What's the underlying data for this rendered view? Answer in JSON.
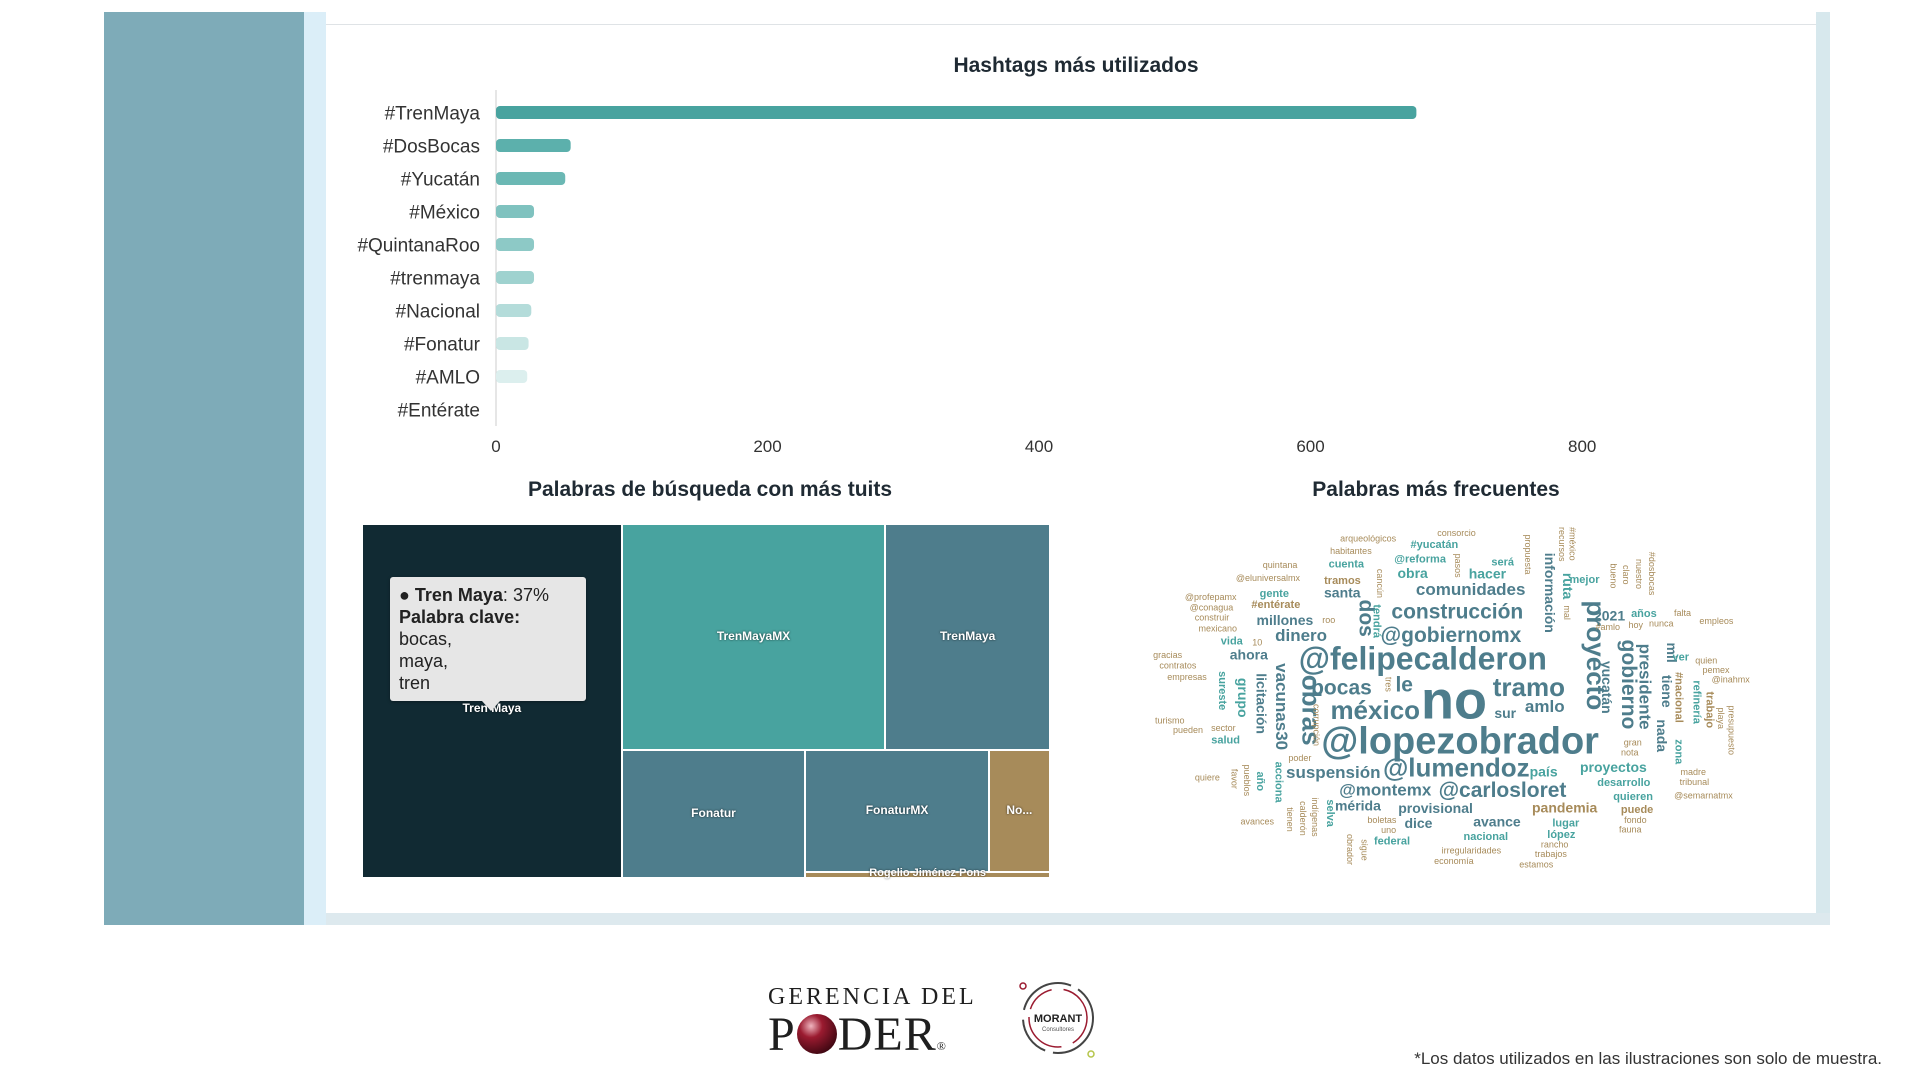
{
  "bar_chart": {
    "title": "Hashtags más utilizados"
  },
  "treemap": {
    "title": "Palabras de búsqueda con más tuits",
    "tooltip": {
      "name": "Tren Maya",
      "value": "37%",
      "keyword_label": "Palabra clave:",
      "keywords": "bocas,\nmaya,\ntren"
    }
  },
  "wordcloud": {
    "title": "Palabras más frecuentes"
  },
  "footer": {
    "logo_top": "GERENCIA DEL",
    "logo_bottom_left": "P",
    "logo_bottom_right": "DER",
    "logo_reg": "®",
    "morant_name": "MORANT",
    "morant_sub": "Consultores",
    "note": "*Los datos utilizados en las ilustraciones son solo de muestra."
  },
  "chart_data": [
    {
      "type": "bar",
      "orientation": "horizontal",
      "title": "Hashtags más utilizados",
      "categories": [
        "#TrenMaya",
        "#DosBocas",
        "#Yucatán",
        "#México",
        "#QuintanaRoo",
        "#trenmaya",
        "#Nacional",
        "#Fonatur",
        "#AMLO",
        "#Entérate"
      ],
      "values": [
        678,
        55,
        51,
        28,
        28,
        28,
        26,
        24,
        23,
        0
      ],
      "colors": [
        "#48a39f",
        "#5cb0ac",
        "#6bb8b4",
        "#7fc2bf",
        "#8dc9c6",
        "#9fd2cf",
        "#b4dcda",
        "#c9e6e4",
        "#dcefee",
        "#eef7f6"
      ],
      "xticks": [
        0,
        200,
        400,
        600,
        800
      ],
      "xlim": [
        0,
        800
      ],
      "grid": false
    },
    {
      "type": "treemap",
      "title": "Palabras de búsqueda con más tuits",
      "items": [
        {
          "name": "Tren Maya",
          "value": 37,
          "color": "#112a33"
        },
        {
          "name": "TrenMayaMX",
          "value": 24,
          "color": "#48a39f"
        },
        {
          "name": "TrenMaya",
          "value": 15,
          "color": "#4e7d8c"
        },
        {
          "name": "Fonatur",
          "value": 9,
          "color": "#4e7d8c"
        },
        {
          "name": "FonaturMX",
          "value": 9,
          "color": "#4e7d8c"
        },
        {
          "name": "No...",
          "value": 3,
          "color": "#a78b5a"
        },
        {
          "name": "Rogelio Jiménez Pons",
          "value": 1,
          "color": "#a78b5a"
        }
      ]
    },
    {
      "type": "wordcloud",
      "title": "Palabras más frecuentes",
      "colors": {
        "primary": "#4e7d8c",
        "teal": "#48a39f",
        "secondary": "#a78b5a"
      },
      "words": [
        {
          "t": "no",
          "w": 10,
          "c": "primary"
        },
        {
          "t": "@lopezobrador",
          "w": 8,
          "c": "primary"
        },
        {
          "t": "@felipecalderon",
          "w": 7,
          "c": "primary"
        },
        {
          "t": "tramo",
          "w": 6,
          "c": "primary"
        },
        {
          "t": "proyecto",
          "w": 6,
          "c": "primary"
        },
        {
          "t": "méxico",
          "w": 6,
          "c": "primary"
        },
        {
          "t": "@lumendoz",
          "w": 6,
          "c": "primary"
        },
        {
          "t": "obras",
          "w": 6,
          "c": "primary"
        },
        {
          "t": "@gobiernomx",
          "w": 5,
          "c": "primary"
        },
        {
          "t": "construcción",
          "w": 5,
          "c": "primary"
        },
        {
          "t": "suspensión",
          "w": 4,
          "c": "primary"
        },
        {
          "t": "gobierno",
          "w": 5,
          "c": "primary"
        },
        {
          "t": "bocas",
          "w": 5,
          "c": "primary"
        },
        {
          "t": "@carlosloret",
          "w": 5,
          "c": "primary"
        },
        {
          "t": "dos",
          "w": 5,
          "c": "primary"
        },
        {
          "t": "le",
          "w": 5,
          "c": "primary"
        },
        {
          "t": "presidente",
          "w": 4,
          "c": "primary"
        },
        {
          "t": "@montemx",
          "w": 4,
          "c": "primary"
        },
        {
          "t": "dinero",
          "w": 4,
          "c": "primary"
        },
        {
          "t": "vacunas30",
          "w": 4,
          "c": "primary"
        },
        {
          "t": "comunidades",
          "w": 4,
          "c": "primary"
        },
        {
          "t": "amlo",
          "w": 4,
          "c": "primary"
        },
        {
          "t": "información",
          "w": 3,
          "c": "primary"
        },
        {
          "t": "provisional",
          "w": 3,
          "c": "primary"
        },
        {
          "t": "proyectos",
          "w": 3,
          "c": "teal"
        },
        {
          "t": "licitación",
          "w": 3,
          "c": "primary"
        },
        {
          "t": "sur",
          "w": 3,
          "c": "primary"
        },
        {
          "t": "millones",
          "w": 3,
          "c": "primary"
        },
        {
          "t": "tiene",
          "w": 3,
          "c": "primary"
        },
        {
          "t": "mérida",
          "w": 3,
          "c": "primary"
        },
        {
          "t": "santa",
          "w": 3,
          "c": "primary"
        },
        {
          "t": "yucatán",
          "w": 3,
          "c": "primary"
        },
        {
          "t": "avance",
          "w": 3,
          "c": "primary"
        },
        {
          "t": "2021",
          "w": 3,
          "c": "primary"
        },
        {
          "t": "nada",
          "w": 3,
          "c": "primary"
        },
        {
          "t": "país",
          "w": 3,
          "c": "teal"
        },
        {
          "t": "obra",
          "w": 3,
          "c": "teal"
        },
        {
          "t": "ruta",
          "w": 3,
          "c": "teal"
        },
        {
          "t": "hacer",
          "w": 3,
          "c": "teal"
        },
        {
          "t": "pandemia",
          "w": 3,
          "c": "secondary"
        },
        {
          "t": "grupo",
          "w": 3,
          "c": "teal"
        },
        {
          "t": "dice",
          "w": 3,
          "c": "primary"
        },
        {
          "t": "ahora",
          "w": 3,
          "c": "primary"
        },
        {
          "t": "mil",
          "w": 3,
          "c": "primary"
        },
        {
          "t": "desarrollo",
          "w": 2,
          "c": "teal"
        },
        {
          "t": "tramos",
          "w": 2,
          "c": "secondary"
        },
        {
          "t": "#nacional",
          "w": 2,
          "c": "secondary"
        },
        {
          "t": "#entérate",
          "w": 2,
          "c": "secondary"
        },
        {
          "t": "@reforma",
          "w": 2,
          "c": "teal"
        },
        {
          "t": "acciona",
          "w": 2,
          "c": "teal"
        },
        {
          "t": "será",
          "w": 2,
          "c": "teal"
        },
        {
          "t": "lugar",
          "w": 2,
          "c": "teal"
        },
        {
          "t": "refinería",
          "w": 2,
          "c": "teal"
        },
        {
          "t": "nacional",
          "w": 2,
          "c": "teal"
        },
        {
          "t": "salud",
          "w": 2,
          "c": "teal"
        },
        {
          "t": "sureste",
          "w": 2,
          "c": "teal"
        },
        {
          "t": "quieren",
          "w": 2,
          "c": "teal"
        },
        {
          "t": "mejor",
          "w": 2,
          "c": "teal"
        },
        {
          "t": "tendrá",
          "w": 2,
          "c": "teal"
        },
        {
          "t": "años",
          "w": 2,
          "c": "teal"
        },
        {
          "t": "ver",
          "w": 2,
          "c": "teal"
        },
        {
          "t": "zona",
          "w": 2,
          "c": "teal"
        },
        {
          "t": "vida",
          "w": 2,
          "c": "teal"
        },
        {
          "t": "federal",
          "w": 2,
          "c": "teal"
        },
        {
          "t": "selva",
          "w": 2,
          "c": "teal"
        },
        {
          "t": "gente",
          "w": 2,
          "c": "teal"
        },
        {
          "t": "cuenta",
          "w": 2,
          "c": "teal"
        },
        {
          "t": "año",
          "w": 2,
          "c": "teal"
        },
        {
          "t": "lópez",
          "w": 2,
          "c": "teal"
        },
        {
          "t": "#yucatán",
          "w": 2,
          "c": "teal"
        },
        {
          "t": "trabajo",
          "w": 2,
          "c": "secondary"
        },
        {
          "t": "puede",
          "w": 2,
          "c": "secondary"
        },
        {
          "t": "quien",
          "w": 1,
          "c": "secondary"
        },
        {
          "t": "indígenas",
          "w": 1,
          "c": "secondary"
        },
        {
          "t": "irregularidades",
          "w": 1,
          "c": "secondary"
        },
        {
          "t": "mexicano",
          "w": 1,
          "c": "secondary"
        },
        {
          "t": "propuesta",
          "w": 1,
          "c": "secondary"
        },
        {
          "t": "@eluniversalmx",
          "w": 1,
          "c": "secondary"
        },
        {
          "t": "#amlo",
          "w": 1,
          "c": "secondary"
        },
        {
          "t": "pueblos",
          "w": 1,
          "c": "secondary"
        },
        {
          "t": "empresas",
          "w": 1,
          "c": "secondary"
        },
        {
          "t": "habitantes",
          "w": 1,
          "c": "secondary"
        },
        {
          "t": "bueno",
          "w": 1,
          "c": "secondary"
        },
        {
          "t": "falta",
          "w": 1,
          "c": "secondary"
        },
        {
          "t": "madre",
          "w": 1,
          "c": "secondary"
        },
        {
          "t": "calderón",
          "w": 1,
          "c": "secondary"
        },
        {
          "t": "rancho",
          "w": 1,
          "c": "secondary"
        },
        {
          "t": "pueden",
          "w": 1,
          "c": "secondary"
        },
        {
          "t": "playa",
          "w": 1,
          "c": "secondary"
        },
        {
          "t": "gran",
          "w": 1,
          "c": "secondary"
        },
        {
          "t": "fondo",
          "w": 1,
          "c": "secondary"
        },
        {
          "t": "favor",
          "w": 1,
          "c": "secondary"
        },
        {
          "t": "uno",
          "w": 1,
          "c": "secondary"
        },
        {
          "t": "construir",
          "w": 1,
          "c": "secondary"
        },
        {
          "t": "claro",
          "w": 1,
          "c": "secondary"
        },
        {
          "t": "trabajos",
          "w": 1,
          "c": "secondary"
        },
        {
          "t": "10",
          "w": 1,
          "c": "secondary"
        },
        {
          "t": "tienen",
          "w": 1,
          "c": "secondary"
        },
        {
          "t": "hoy",
          "w": 1,
          "c": "secondary"
        },
        {
          "t": "economía",
          "w": 1,
          "c": "secondary"
        },
        {
          "t": "sigue",
          "w": 1,
          "c": "secondary"
        },
        {
          "t": "sector",
          "w": 1,
          "c": "secondary"
        },
        {
          "t": "consorcio",
          "w": 1,
          "c": "secondary"
        },
        {
          "t": "corrupción",
          "w": 1,
          "c": "secondary"
        },
        {
          "t": "pemex",
          "w": 1,
          "c": "secondary"
        },
        {
          "t": "tribunal",
          "w": 1,
          "c": "secondary"
        },
        {
          "t": "nuestro",
          "w": 1,
          "c": "secondary"
        },
        {
          "t": "quiere",
          "w": 1,
          "c": "secondary"
        },
        {
          "t": "contratos",
          "w": 1,
          "c": "secondary"
        },
        {
          "t": "tres",
          "w": 1,
          "c": "secondary"
        },
        {
          "t": "nunca",
          "w": 1,
          "c": "secondary"
        },
        {
          "t": "fauna",
          "w": 1,
          "c": "secondary"
        },
        {
          "t": "recursos",
          "w": 1,
          "c": "secondary"
        },
        {
          "t": "turismo",
          "w": 1,
          "c": "secondary"
        },
        {
          "t": "@conagua",
          "w": 1,
          "c": "secondary"
        },
        {
          "t": "presupuesto",
          "w": 1,
          "c": "secondary"
        },
        {
          "t": "quintana",
          "w": 1,
          "c": "secondary"
        },
        {
          "t": "arqueológicos",
          "w": 1,
          "c": "secondary"
        },
        {
          "t": "#dosbocas",
          "w": 1,
          "c": "secondary"
        },
        {
          "t": "@semarnatmx",
          "w": 1,
          "c": "secondary"
        },
        {
          "t": "avances",
          "w": 1,
          "c": "secondary"
        },
        {
          "t": "cancún",
          "w": 1,
          "c": "secondary"
        },
        {
          "t": "empleos",
          "w": 1,
          "c": "secondary"
        },
        {
          "t": "estamos",
          "w": 1,
          "c": "secondary"
        },
        {
          "t": "obrador",
          "w": 1,
          "c": "secondary"
        },
        {
          "t": "poder",
          "w": 1,
          "c": "secondary"
        },
        {
          "t": "gracias",
          "w": 1,
          "c": "secondary"
        },
        {
          "t": "#méxico",
          "w": 1,
          "c": "secondary"
        },
        {
          "t": "boletas",
          "w": 1,
          "c": "secondary"
        },
        {
          "t": "roo",
          "w": 1,
          "c": "secondary"
        },
        {
          "t": "pasos",
          "w": 1,
          "c": "secondary"
        },
        {
          "t": "nota",
          "w": 1,
          "c": "secondary"
        },
        {
          "t": "@inahmx",
          "w": 1,
          "c": "secondary"
        },
        {
          "t": "mal",
          "w": 1,
          "c": "secondary"
        },
        {
          "t": "@profepamx",
          "w": 1,
          "c": "secondary"
        }
      ]
    }
  ]
}
